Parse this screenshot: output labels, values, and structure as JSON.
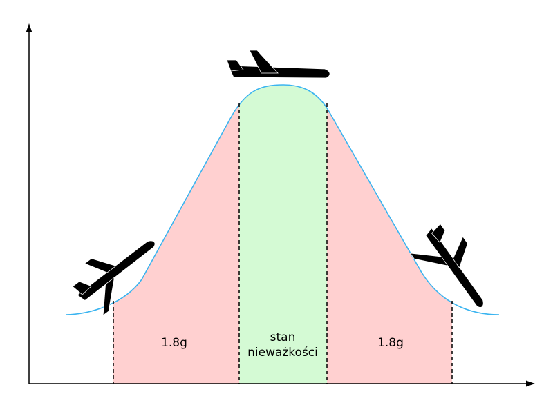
{
  "labels": {
    "left_zone": "1.8g",
    "center_line1": "stan",
    "center_line2": "nieważkości",
    "right_zone": "1.8g"
  },
  "colors": {
    "hypergravity_zone": "#ffd0d0",
    "weightless_zone": "#d4fad4",
    "trajectory": "#3ab4f0",
    "axes": "#000000",
    "aircraft": "#000000"
  },
  "icons": [
    "airplane-climbing-icon",
    "airplane-level-icon",
    "airplane-diving-icon"
  ]
}
